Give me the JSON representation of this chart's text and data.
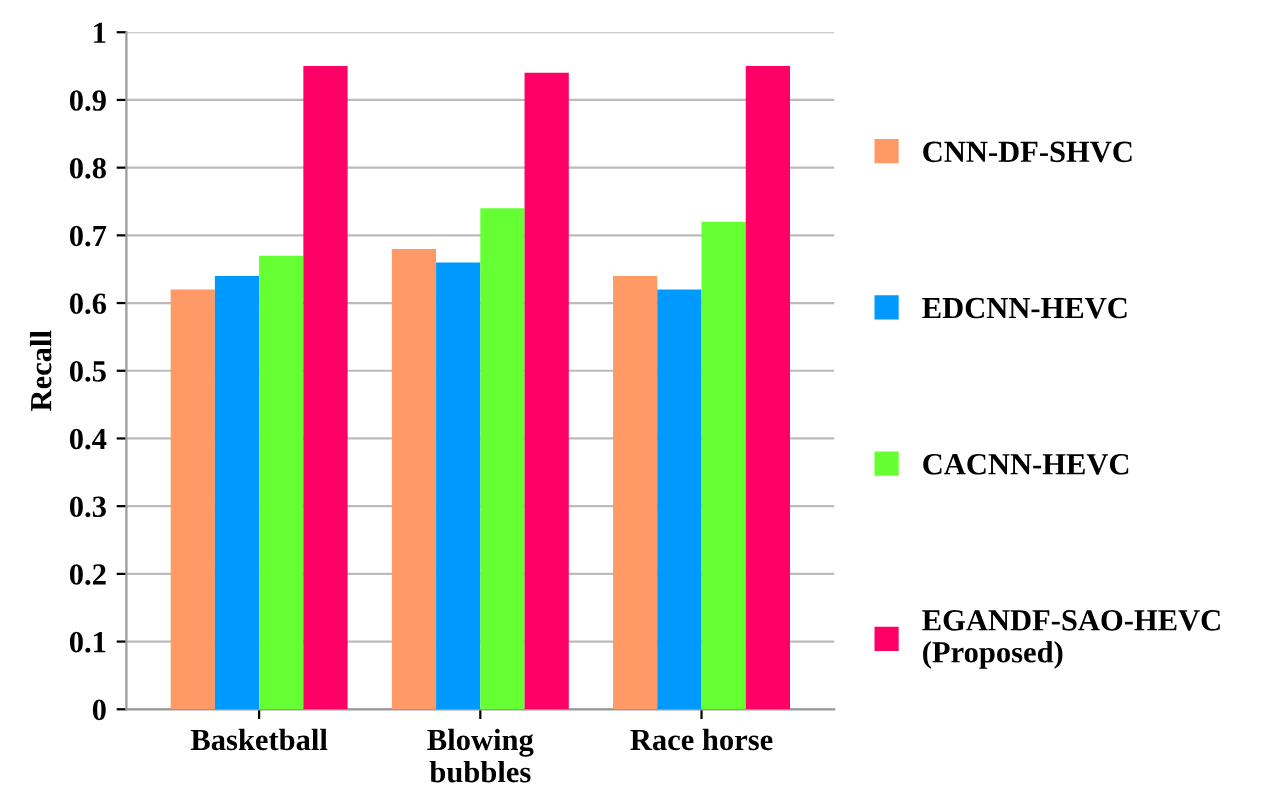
{
  "chart_data": {
    "type": "bar",
    "ylabel": "Recall",
    "categories": [
      "Basketball",
      "Blowing bubbles",
      "Race horse"
    ],
    "series": [
      {
        "name": "CNN-DF-SHVC",
        "color": "#ff9966",
        "values": [
          0.62,
          0.68,
          0.64
        ]
      },
      {
        "name": "EDCNN-HEVC",
        "color": "#0099ff",
        "values": [
          0.64,
          0.66,
          0.62
        ]
      },
      {
        "name": "CACNN-HEVC",
        "color": "#66ff33",
        "values": [
          0.67,
          0.74,
          0.72
        ]
      },
      {
        "name": "EGANDF-SAO-HEVC (Proposed)",
        "color": "#ff0066",
        "values": [
          0.95,
          0.94,
          0.95
        ]
      }
    ],
    "ylim": [
      0,
      1
    ],
    "yticks": [
      0,
      0.1,
      0.2,
      0.3,
      0.4,
      0.5,
      0.6,
      0.7,
      0.8,
      0.9,
      1
    ],
    "grid": "y",
    "legend": "right"
  }
}
